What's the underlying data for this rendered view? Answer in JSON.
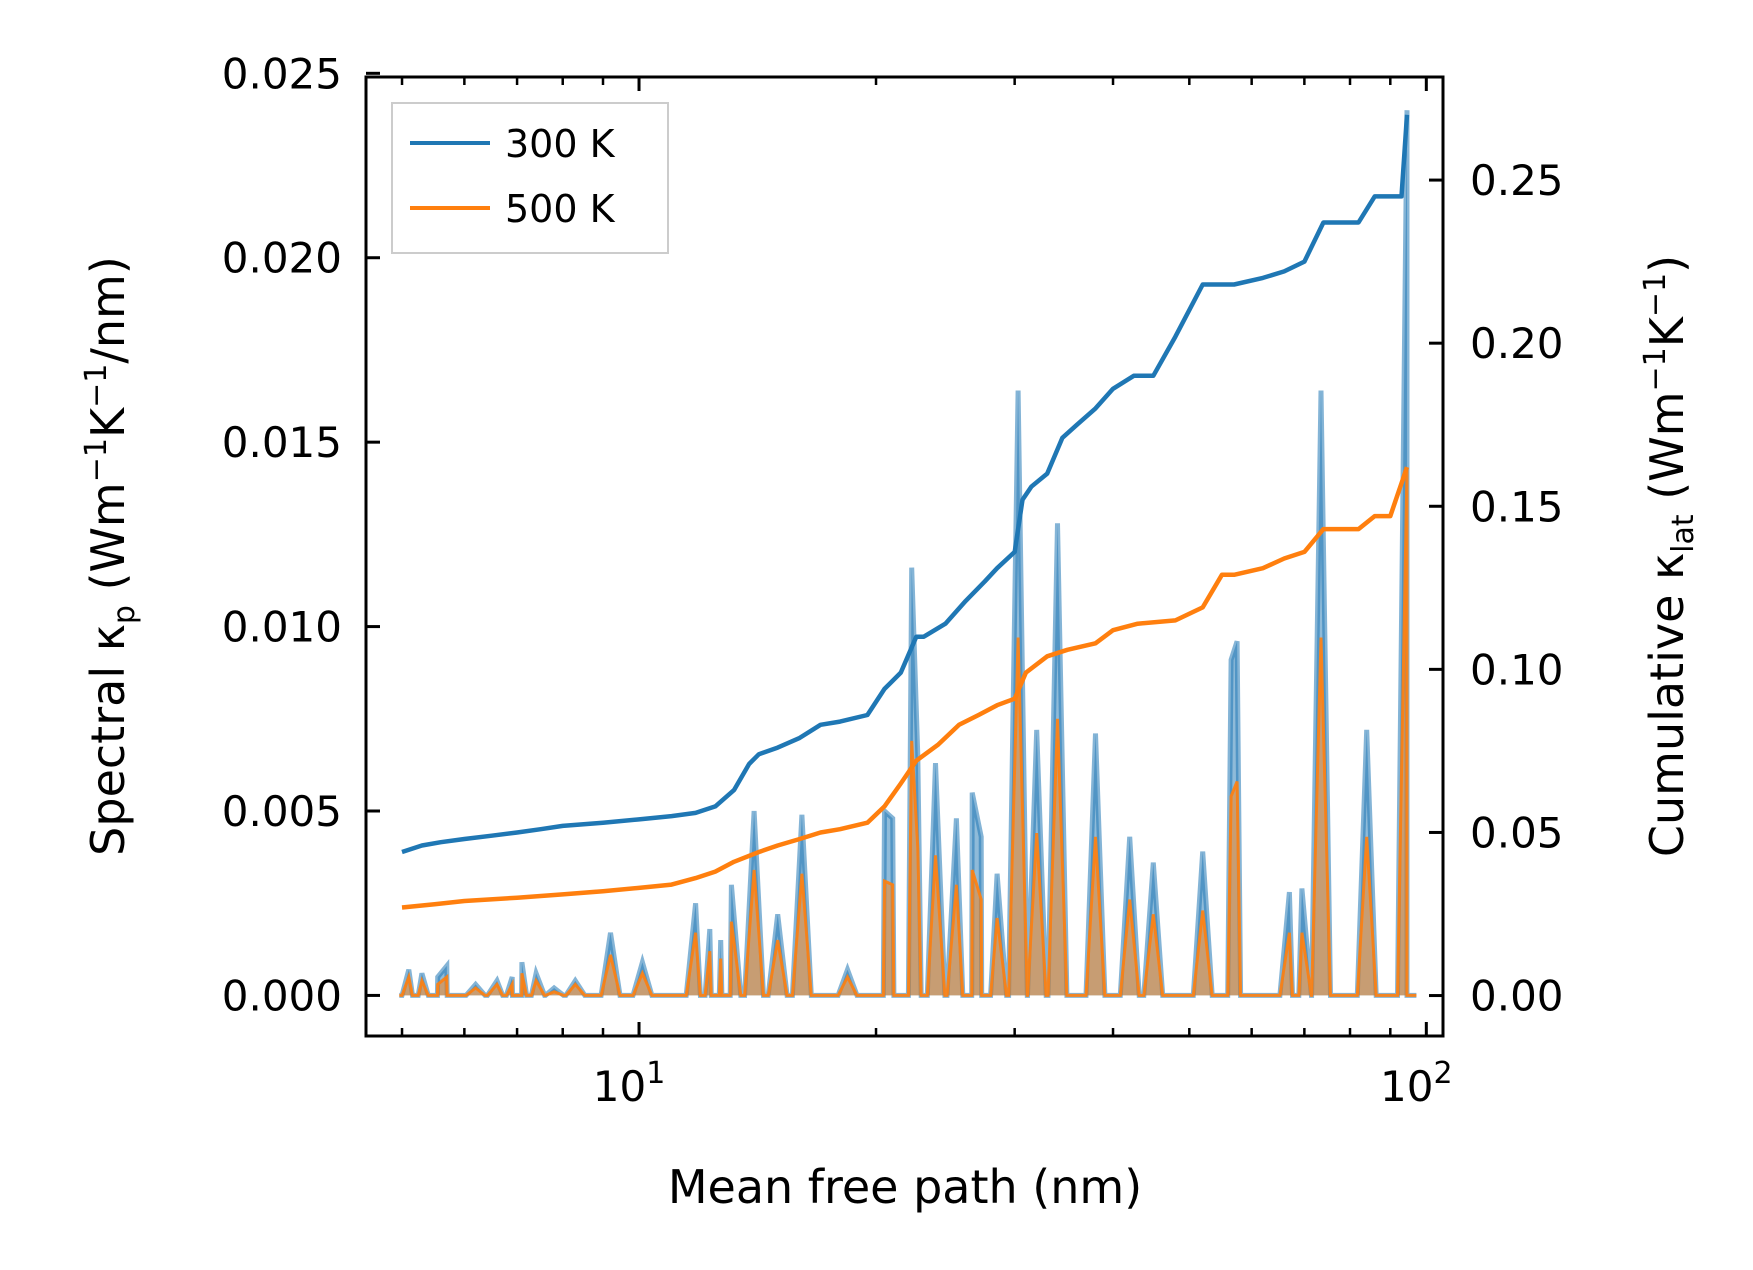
{
  "chart_data": {
    "type": "line",
    "title": "",
    "xlabel": "Mean free path (nm)",
    "ylabel_left": "Spectral κp (Wm−1K−1/nm)",
    "ylabel_right": "Cumulative κlat (Wm−1K−1)",
    "xscale": "log",
    "xlim": [
      4.5,
      105
    ],
    "ylim_left": [
      -0.0011,
      0.0249
    ],
    "ylim_right": [
      -0.0124,
      0.2816
    ],
    "x_ticks": [
      {
        "value": 10,
        "base": "10",
        "exp": "1"
      },
      {
        "value": 100,
        "base": "10",
        "exp": "2"
      }
    ],
    "y_ticks_left": [
      {
        "value": 0.0,
        "label": "0.000"
      },
      {
        "value": 0.005,
        "label": "0.005"
      },
      {
        "value": 0.01,
        "label": "0.010"
      },
      {
        "value": 0.015,
        "label": "0.015"
      },
      {
        "value": 0.02,
        "label": "0.020"
      },
      {
        "value": 0.025,
        "label": "0.025"
      }
    ],
    "y_ticks_right": [
      {
        "value": 0.0,
        "label": "0.00"
      },
      {
        "value": 0.05,
        "label": "0.05"
      },
      {
        "value": 0.1,
        "label": "0.10"
      },
      {
        "value": 0.15,
        "label": "0.15"
      },
      {
        "value": 0.2,
        "label": "0.20"
      },
      {
        "value": 0.25,
        "label": "0.25"
      }
    ],
    "legend": {
      "location": "upper-left",
      "entries": [
        "300 K",
        "500 K"
      ]
    },
    "colors": {
      "300K": "#1f77b4",
      "500K": "#ff7f0e"
    },
    "series": [
      {
        "name": "300 K",
        "axis": "right",
        "kind": "cumulative",
        "x": [
          5.0,
          5.3,
          5.6,
          6.0,
          6.5,
          7.0,
          7.5,
          8.0,
          9.0,
          10.0,
          11.0,
          11.8,
          12.5,
          13.2,
          13.8,
          14.2,
          15.0,
          16.0,
          17.0,
          18.0,
          19.5,
          20.5,
          21.5,
          22.5,
          23.0,
          24.5,
          26.0,
          27.5,
          28.5,
          30.0,
          30.7,
          31.5,
          33.0,
          34.5,
          36.0,
          38.0,
          40.0,
          42.5,
          45.0,
          48.0,
          52.0,
          55.0,
          57.0,
          62.0,
          66.0,
          70.0,
          74.0,
          77.0,
          82.0,
          86.0,
          90.0,
          93.0,
          94.5
        ],
        "y": [
          0.044,
          0.046,
          0.047,
          0.048,
          0.049,
          0.05,
          0.051,
          0.052,
          0.053,
          0.054,
          0.055,
          0.056,
          0.058,
          0.063,
          0.071,
          0.074,
          0.076,
          0.079,
          0.083,
          0.084,
          0.086,
          0.094,
          0.099,
          0.11,
          0.11,
          0.114,
          0.121,
          0.127,
          0.131,
          0.136,
          0.152,
          0.156,
          0.16,
          0.171,
          0.175,
          0.18,
          0.186,
          0.19,
          0.19,
          0.202,
          0.218,
          0.218,
          0.218,
          0.22,
          0.222,
          0.225,
          0.237,
          0.237,
          0.237,
          0.245,
          0.245,
          0.245,
          0.27
        ]
      },
      {
        "name": "500 K",
        "axis": "right",
        "kind": "cumulative",
        "x": [
          5.0,
          5.5,
          6.0,
          7.0,
          8.0,
          9.0,
          10.0,
          11.0,
          11.8,
          12.5,
          13.2,
          14.2,
          15.0,
          16.0,
          17.0,
          18.0,
          19.5,
          20.5,
          21.5,
          22.5,
          24.0,
          25.5,
          27.0,
          28.5,
          30.0,
          31.0,
          33.0,
          35.0,
          38.0,
          40.0,
          43.0,
          48.0,
          52.0,
          55.0,
          57.0,
          62.0,
          66.0,
          70.0,
          74.0,
          77.0,
          82.0,
          86.0,
          90.0,
          94.5
        ],
        "y": [
          0.027,
          0.028,
          0.029,
          0.03,
          0.031,
          0.032,
          0.033,
          0.034,
          0.036,
          0.038,
          0.041,
          0.044,
          0.046,
          0.048,
          0.05,
          0.051,
          0.053,
          0.058,
          0.065,
          0.072,
          0.077,
          0.083,
          0.086,
          0.089,
          0.091,
          0.099,
          0.104,
          0.106,
          0.108,
          0.112,
          0.114,
          0.115,
          0.119,
          0.129,
          0.129,
          0.131,
          0.134,
          0.136,
          0.143,
          0.143,
          0.143,
          0.147,
          0.147,
          0.162
        ]
      },
      {
        "name": "300 K spectral",
        "axis": "left",
        "kind": "spectral",
        "peaks": [
          [
            5.1,
            0.0007
          ],
          [
            5.3,
            0.0006
          ],
          [
            5.55,
            0.0005
          ],
          [
            5.7,
            0.0008
          ],
          [
            6.2,
            0.0003
          ],
          [
            6.6,
            0.0004
          ],
          [
            6.9,
            0.0005
          ],
          [
            7.1,
            0.0009
          ],
          [
            7.4,
            0.0006
          ],
          [
            7.8,
            0.0002
          ],
          [
            8.3,
            0.0004
          ],
          [
            9.2,
            0.0017
          ],
          [
            10.1,
            0.0009
          ],
          [
            11.8,
            0.0025
          ],
          [
            12.3,
            0.0018
          ],
          [
            12.7,
            0.0015
          ],
          [
            13.1,
            0.003
          ],
          [
            14.0,
            0.005
          ],
          [
            15.0,
            0.0022
          ],
          [
            16.1,
            0.0049
          ],
          [
            18.4,
            0.0007
          ],
          [
            20.5,
            0.005
          ],
          [
            21.0,
            0.0048
          ],
          [
            22.2,
            0.0116
          ],
          [
            22.6,
            0.0065
          ],
          [
            23.8,
            0.0063
          ],
          [
            25.3,
            0.0048
          ],
          [
            26.5,
            0.0055
          ],
          [
            27.2,
            0.0043
          ],
          [
            28.5,
            0.0033
          ],
          [
            30.3,
            0.0164
          ],
          [
            32.0,
            0.0072
          ],
          [
            34.0,
            0.0128
          ],
          [
            38.0,
            0.0071
          ],
          [
            42.0,
            0.0043
          ],
          [
            45.0,
            0.0036
          ],
          [
            52.0,
            0.0039
          ],
          [
            56.5,
            0.0091
          ],
          [
            57.5,
            0.0096
          ],
          [
            67.0,
            0.0028
          ],
          [
            69.5,
            0.0029
          ],
          [
            73.5,
            0.0164
          ],
          [
            84.0,
            0.0072
          ],
          [
            94.5,
            0.024
          ]
        ]
      },
      {
        "name": "500 K spectral",
        "axis": "left",
        "kind": "spectral",
        "peaks": [
          [
            5.1,
            0.0005
          ],
          [
            5.3,
            0.0004
          ],
          [
            5.55,
            0.0003
          ],
          [
            5.7,
            0.0005
          ],
          [
            6.2,
            0.0002
          ],
          [
            6.6,
            0.0003
          ],
          [
            6.9,
            0.0003
          ],
          [
            7.1,
            0.0006
          ],
          [
            7.4,
            0.0004
          ],
          [
            7.8,
            0.0001
          ],
          [
            8.3,
            0.0003
          ],
          [
            9.2,
            0.0011
          ],
          [
            10.1,
            0.0006
          ],
          [
            11.8,
            0.0017
          ],
          [
            12.3,
            0.0012
          ],
          [
            12.7,
            0.001
          ],
          [
            13.1,
            0.002
          ],
          [
            14.0,
            0.0034
          ],
          [
            15.0,
            0.0015
          ],
          [
            16.1,
            0.0033
          ],
          [
            18.4,
            0.0005
          ],
          [
            20.5,
            0.0031
          ],
          [
            21.0,
            0.003
          ],
          [
            22.2,
            0.0069
          ],
          [
            22.6,
            0.004
          ],
          [
            23.8,
            0.0038
          ],
          [
            25.3,
            0.003
          ],
          [
            26.5,
            0.0034
          ],
          [
            27.2,
            0.0026
          ],
          [
            28.5,
            0.0021
          ],
          [
            30.3,
            0.0097
          ],
          [
            32.0,
            0.0044
          ],
          [
            34.0,
            0.0075
          ],
          [
            38.0,
            0.0043
          ],
          [
            42.0,
            0.0026
          ],
          [
            45.0,
            0.0022
          ],
          [
            52.0,
            0.0023
          ],
          [
            56.5,
            0.0054
          ],
          [
            57.5,
            0.0058
          ],
          [
            67.0,
            0.0017
          ],
          [
            69.5,
            0.0017
          ],
          [
            73.5,
            0.0097
          ],
          [
            84.0,
            0.0043
          ],
          [
            94.5,
            0.0143
          ]
        ]
      }
    ]
  }
}
